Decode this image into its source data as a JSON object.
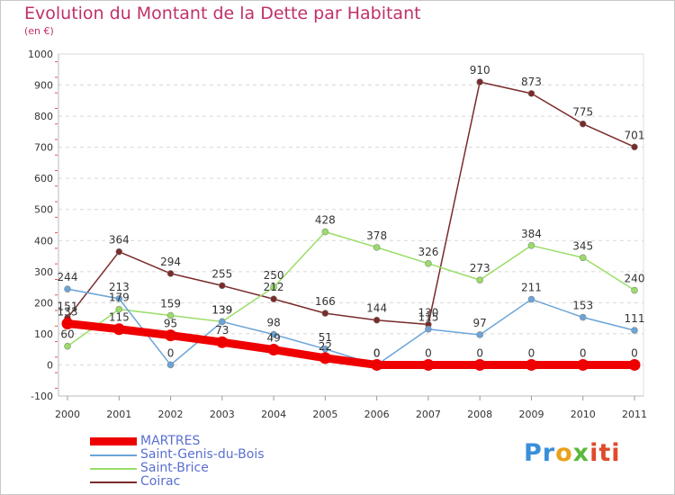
{
  "chart_data": {
    "type": "line",
    "title": "Evolution du Montant de la Dette par Habitant",
    "subtitle": "(en €)",
    "x": [
      "2000",
      "2001",
      "2002",
      "2003",
      "2004",
      "2005",
      "2006",
      "2007",
      "2008",
      "2009",
      "2010",
      "2011"
    ],
    "ylim": [
      -100,
      1000
    ],
    "yticks": [
      -100,
      0,
      100,
      200,
      300,
      400,
      500,
      600,
      700,
      800,
      900,
      1000
    ],
    "grid": "horizontal dashed",
    "legend": "bottom-left",
    "series": [
      {
        "name": "MARTRES",
        "color": "#ee0000",
        "values": [
          133,
          115,
          95,
          73,
          49,
          22,
          0,
          0,
          0,
          0,
          0,
          0
        ]
      },
      {
        "name": "Saint-Genis-du-Bois",
        "color": "#6aa4d8",
        "values": [
          244,
          213,
          0,
          139,
          98,
          51,
          0,
          115,
          97,
          211,
          153,
          111
        ]
      },
      {
        "name": "Saint-Brice",
        "color": "#99dd66",
        "values": [
          60,
          179,
          159,
          139,
          250,
          428,
          378,
          326,
          273,
          384,
          345,
          240
        ]
      },
      {
        "name": "Coirac",
        "color": "#7a2a2a",
        "values": [
          151,
          364,
          294,
          255,
          212,
          166,
          144,
          130,
          910,
          873,
          775,
          701
        ]
      }
    ]
  },
  "logo": {
    "p1": "Pr",
    "p2": "o",
    "p3": "x",
    "p4": "iti"
  }
}
